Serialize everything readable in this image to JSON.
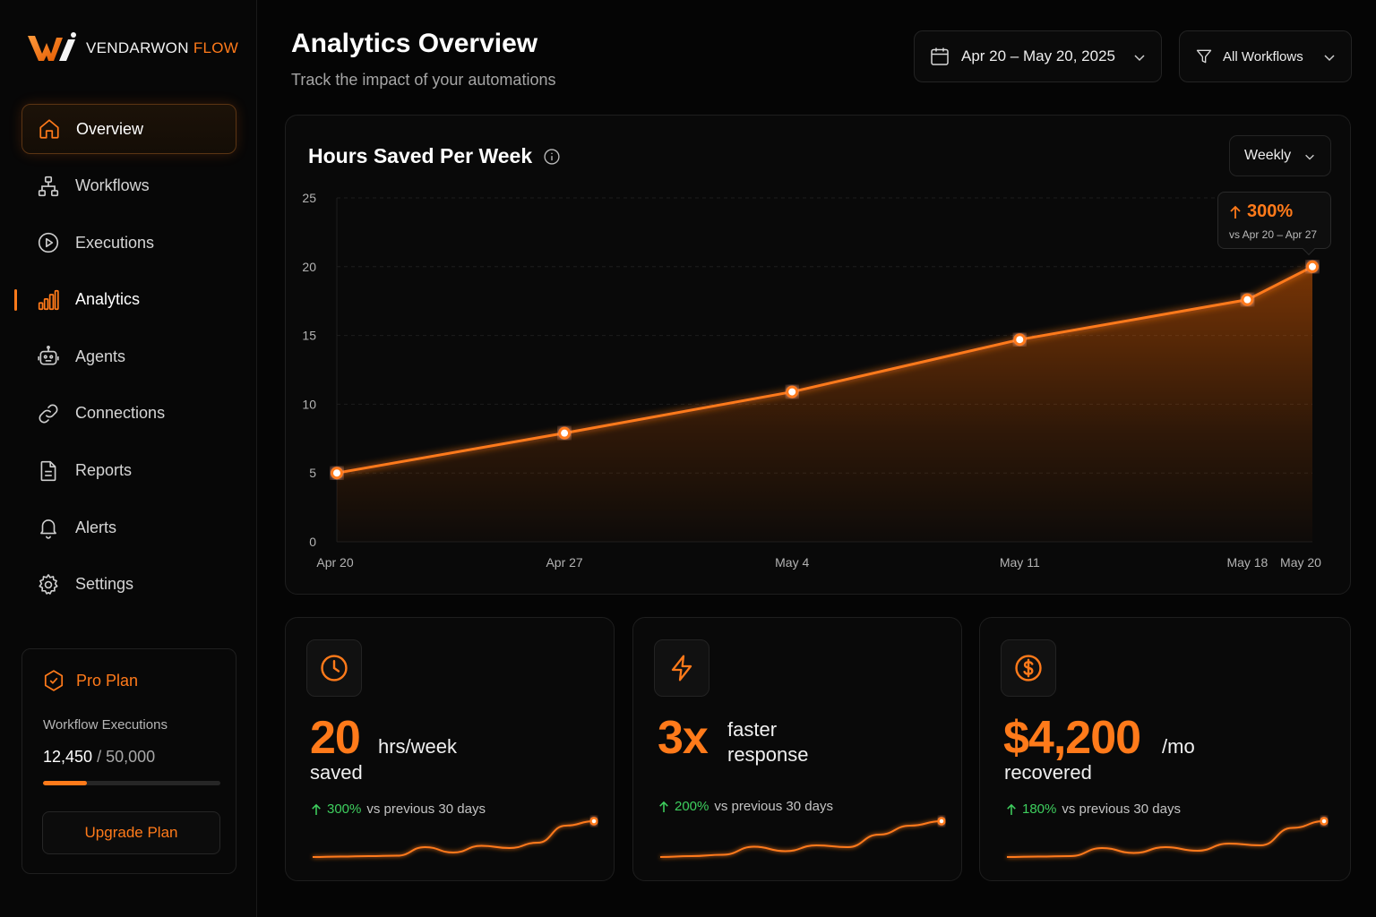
{
  "brand": {
    "name_main": "VENDARWON",
    "name_accent": "FLOW",
    "accent_color": "#ff7a1a"
  },
  "sidebar": {
    "items": [
      {
        "label": "Overview",
        "icon": "home-icon",
        "state": "selected"
      },
      {
        "label": "Workflows",
        "icon": "workflow-icon"
      },
      {
        "label": "Executions",
        "icon": "play-circle-icon"
      },
      {
        "label": "Analytics",
        "icon": "bar-chart-icon",
        "state": "current"
      },
      {
        "label": "Agents",
        "icon": "robot-icon"
      },
      {
        "label": "Connections",
        "icon": "link-icon"
      },
      {
        "label": "Reports",
        "icon": "document-icon"
      },
      {
        "label": "Alerts",
        "icon": "bell-icon"
      },
      {
        "label": "Settings",
        "icon": "gear-icon"
      }
    ],
    "plan": {
      "title": "Pro Plan",
      "usage_label": "Workflow Executions",
      "used": "12,450",
      "limit": "/ 50,000",
      "usage_fraction": 0.249,
      "button": "Upgrade Plan"
    }
  },
  "header": {
    "title": "Analytics Overview",
    "subtitle": "Track the impact of your automations",
    "date_range": "Apr 20 – May 20, 2025",
    "workflow_filter": "All Workflows"
  },
  "chart_card": {
    "title": "Hours Saved Per Week",
    "period": "Weekly",
    "tooltip": {
      "value": "300%",
      "comparison": "vs Apr 20 – Apr 27"
    }
  },
  "chart_data": {
    "type": "area",
    "title": "Hours Saved Per Week",
    "x": [
      "Apr 20",
      "Apr 27",
      "May 4",
      "May 11",
      "May 18",
      "May 20"
    ],
    "x_days": [
      0,
      7,
      14,
      21,
      28,
      30
    ],
    "y": [
      5,
      7.9,
      10.9,
      14.7,
      17.6,
      20
    ],
    "ylim": [
      0,
      25
    ],
    "yticks": [
      0,
      5,
      10,
      15,
      20,
      25
    ],
    "grid": true,
    "color": "#ff7a1a"
  },
  "stats": [
    {
      "icon": "clock-icon",
      "value": "20",
      "unit_line1": "hrs/week",
      "unit_line2": "saved",
      "delta": "300%",
      "delta_text": "vs previous 30 days",
      "trend": [
        2,
        2.1,
        2.2,
        2.3,
        4.2,
        3.0,
        4.5,
        4.0,
        5.2,
        9.0,
        10.0
      ]
    },
    {
      "icon": "lightning-icon",
      "value": "3x",
      "unit_line1": "faster",
      "unit_line2": "response",
      "delta": "200%",
      "delta_text": "vs previous 30 days",
      "trend": [
        2,
        2.2,
        2.5,
        4.3,
        3.3,
        4.6,
        4.2,
        7.0,
        9.0,
        10.0
      ]
    },
    {
      "icon": "dollar-icon",
      "value": "$4,200",
      "unit_line1": "/mo",
      "unit_line2": "recovered",
      "delta": "180%",
      "delta_text": "vs previous 30 days",
      "trend": [
        2,
        2.1,
        2.2,
        4.0,
        2.9,
        4.2,
        3.4,
        5.0,
        4.6,
        8.5,
        10.0
      ]
    }
  ]
}
